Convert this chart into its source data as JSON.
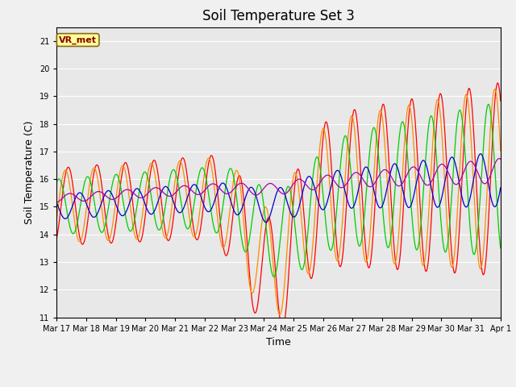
{
  "title": "Soil Temperature Set 3",
  "xlabel": "Time",
  "ylabel": "Soil Temperature (C)",
  "ylim": [
    11.0,
    21.5
  ],
  "yticks": [
    11.0,
    12.0,
    13.0,
    14.0,
    15.0,
    16.0,
    17.0,
    18.0,
    19.0,
    20.0,
    21.0
  ],
  "bg_color": "#e8e8e8",
  "grid_color": "#ffffff",
  "fig_bg_color": "#f0f0f0",
  "series_colors": {
    "2cm": "#ff0000",
    "4cm": "#ff8c00",
    "8cm": "#00cc00",
    "16cm": "#0000cc",
    "32cm": "#aa00aa"
  },
  "date_labels": [
    "Mar 17",
    "Mar 18",
    "Mar 19",
    "Mar 20",
    "Mar 21",
    "Mar 22",
    "Mar 23",
    "Mar 24",
    "Mar 25",
    "Mar 26",
    "Mar 27",
    "Mar 28",
    "Mar 29",
    "Mar 30",
    "Mar 31",
    "Apr 1"
  ],
  "annotation_text": "VR_met",
  "annotation_bg": "#ffff99",
  "annotation_border": "#8b6914",
  "annotation_text_color": "#8b0000",
  "n_days": 15.5,
  "n_points": 744
}
